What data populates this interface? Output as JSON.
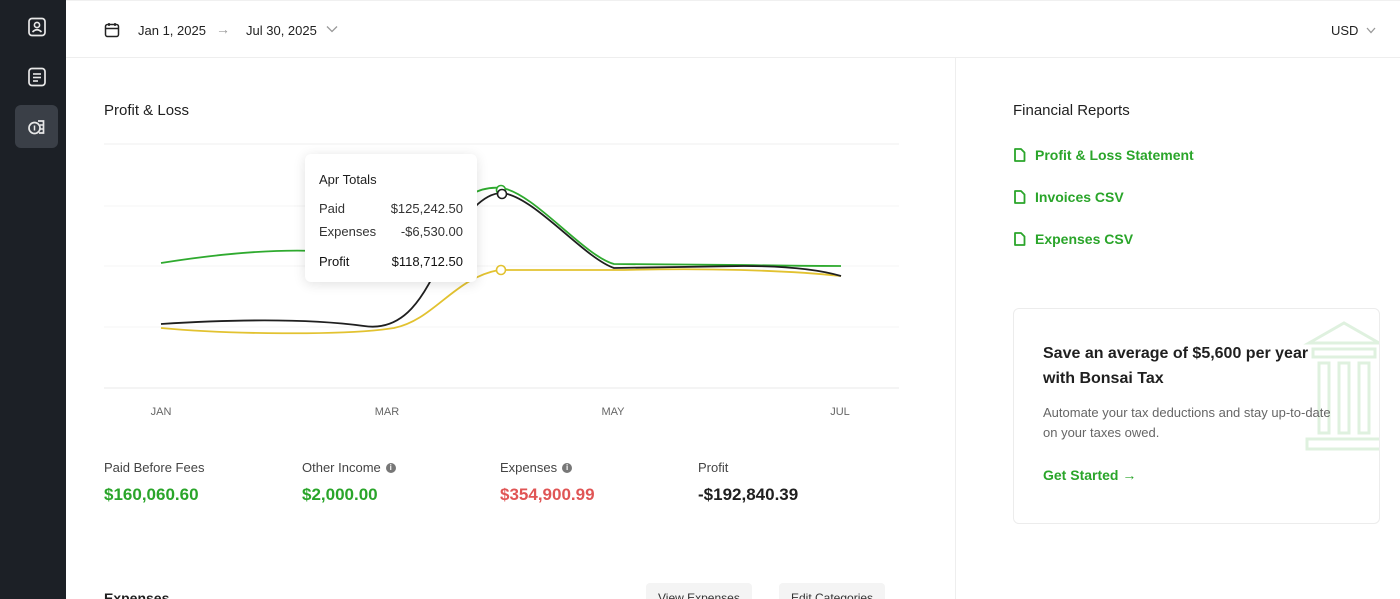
{
  "date_range": {
    "from": "Jan 1, 2025",
    "arrow": "→",
    "to": "Jul 30, 2025"
  },
  "currency": "USD",
  "profit_loss": {
    "title": "Profit & Loss",
    "x_labels": [
      "JAN",
      "MAR",
      "MAY",
      "JUL"
    ],
    "tooltip": {
      "title": "Apr Totals",
      "rows": [
        {
          "label": "Paid",
          "value": "$125,242.50"
        },
        {
          "label": "Expenses",
          "value": "-$6,530.00"
        },
        {
          "label": "Profit",
          "value": "$118,712.50"
        }
      ]
    },
    "series_colors": {
      "paid": "#2faa2f",
      "profit": "#1f1f1f",
      "expenses": "#e2c230"
    }
  },
  "stats": [
    {
      "label": "Paid Before Fees",
      "value": "$160,060.60",
      "color": "#2aa52a",
      "info": false
    },
    {
      "label": "Other Income",
      "value": "$2,000.00",
      "color": "#2aa52a",
      "info": true
    },
    {
      "label": "Expenses",
      "value": "$354,900.99",
      "color": "#e05555",
      "info": true
    },
    {
      "label": "Profit",
      "value": "-$192,840.39",
      "color": "#1f1f1f",
      "info": false
    }
  ],
  "expenses_section": {
    "title": "Expenses",
    "view_button": "View Expenses",
    "edit_button": "Edit Categories"
  },
  "financial_reports": {
    "title": "Financial Reports",
    "links": [
      "Profit & Loss Statement",
      "Invoices CSV",
      "Expenses CSV"
    ]
  },
  "tax_card": {
    "headline": "Save an average of $5,600 per year with Bonsai Tax",
    "body": "Automate your tax deductions and stay up-to-date on your taxes owed.",
    "cta": "Get Started →"
  },
  "icons": {
    "rail": [
      "contact-card-icon",
      "document-list-icon",
      "money-icon"
    ],
    "calendar": "calendar-icon",
    "chevron": "chevron-down-icon",
    "report": "file-icon"
  }
}
